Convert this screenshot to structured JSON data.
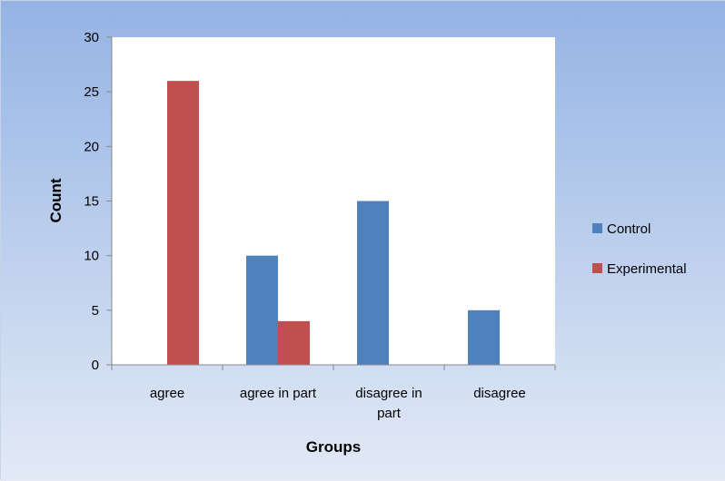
{
  "chart_data": {
    "type": "bar",
    "categories": [
      [
        "agree"
      ],
      [
        "agree in part"
      ],
      [
        "disagree in",
        "part"
      ],
      [
        "disagree"
      ]
    ],
    "series": [
      {
        "name": "Control",
        "values": [
          0,
          10,
          15,
          5
        ],
        "color": "#4f81bd"
      },
      {
        "name": "Experimental",
        "values": [
          26,
          4,
          0,
          0
        ],
        "color": "#c0504d"
      }
    ],
    "xlabel": "Groups",
    "ylabel": "Count",
    "ylim": [
      0,
      30
    ],
    "yticks": [
      0,
      5,
      10,
      15,
      20,
      25,
      30
    ],
    "grid": false,
    "legend_position": "right",
    "background_gradient": [
      "#94b3e4",
      "#e3eaf6"
    ]
  }
}
